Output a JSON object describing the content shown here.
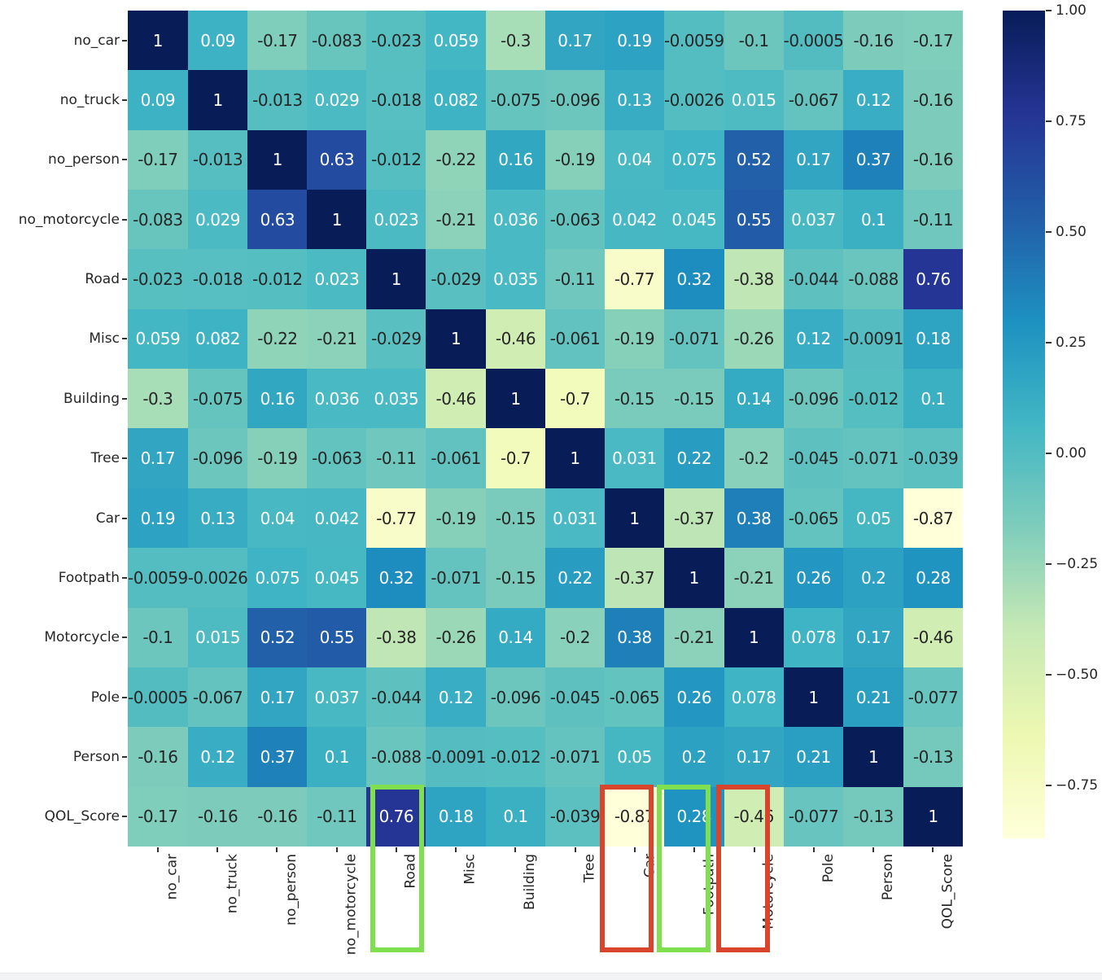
{
  "figure": {
    "background": "#ffffff",
    "colormap_name": "YlGnBu",
    "vmin": -0.87,
    "vmax": 1.0,
    "colormap_stops": [
      "#ffffd9",
      "#edf8b1",
      "#c7e9b4",
      "#7fcdbb",
      "#41b6c4",
      "#1d91c0",
      "#225ea8",
      "#253494",
      "#081d58"
    ],
    "annotation_dark_color": "#262626",
    "annotation_light_color": "#ffffff"
  },
  "chart_data": {
    "type": "heatmap",
    "title": "",
    "xlabel": "",
    "ylabel": "",
    "legend_position": "right-colorbar",
    "labels": [
      "no_car",
      "no_truck",
      "no_person",
      "no_motorcycle",
      "Road",
      "Misc",
      "Building",
      "Tree",
      "Car",
      "Footpath",
      "Motorcycle",
      "Pole",
      "Person",
      "QOL_Score"
    ],
    "matrix": [
      [
        "1",
        "0.09",
        "-0.17",
        "-0.083",
        "-0.023",
        "0.059",
        "-0.3",
        "0.17",
        "0.19",
        "-0.0059",
        "-0.1",
        "-0.0005",
        "-0.16",
        "-0.17"
      ],
      [
        "0.09",
        "1",
        "-0.013",
        "0.029",
        "-0.018",
        "0.082",
        "-0.075",
        "-0.096",
        "0.13",
        "-0.0026",
        "0.015",
        "-0.067",
        "0.12",
        "-0.16"
      ],
      [
        "-0.17",
        "-0.013",
        "1",
        "0.63",
        "-0.012",
        "-0.22",
        "0.16",
        "-0.19",
        "0.04",
        "0.075",
        "0.52",
        "0.17",
        "0.37",
        "-0.16"
      ],
      [
        "-0.083",
        "0.029",
        "0.63",
        "1",
        "0.023",
        "-0.21",
        "0.036",
        "-0.063",
        "0.042",
        "0.045",
        "0.55",
        "0.037",
        "0.1",
        "-0.11"
      ],
      [
        "-0.023",
        "-0.018",
        "-0.012",
        "0.023",
        "1",
        "-0.029",
        "0.035",
        "-0.11",
        "-0.77",
        "0.32",
        "-0.38",
        "-0.044",
        "-0.088",
        "0.76"
      ],
      [
        "0.059",
        "0.082",
        "-0.22",
        "-0.21",
        "-0.029",
        "1",
        "-0.46",
        "-0.061",
        "-0.19",
        "-0.071",
        "-0.26",
        "0.12",
        "-0.0091",
        "0.18"
      ],
      [
        "-0.3",
        "-0.075",
        "0.16",
        "0.036",
        "0.035",
        "-0.46",
        "1",
        "-0.7",
        "-0.15",
        "-0.15",
        "0.14",
        "-0.096",
        "-0.012",
        "0.1"
      ],
      [
        "0.17",
        "-0.096",
        "-0.19",
        "-0.063",
        "-0.11",
        "-0.061",
        "-0.7",
        "1",
        "0.031",
        "0.22",
        "-0.2",
        "-0.045",
        "-0.071",
        "-0.039"
      ],
      [
        "0.19",
        "0.13",
        "0.04",
        "0.042",
        "-0.77",
        "-0.19",
        "-0.15",
        "0.031",
        "1",
        "-0.37",
        "0.38",
        "-0.065",
        "0.05",
        "-0.87"
      ],
      [
        "-0.0059",
        "-0.0026",
        "0.075",
        "0.045",
        "0.32",
        "-0.071",
        "-0.15",
        "0.22",
        "-0.37",
        "1",
        "-0.21",
        "0.26",
        "0.2",
        "0.28"
      ],
      [
        "-0.1",
        "0.015",
        "0.52",
        "0.55",
        "-0.38",
        "-0.26",
        "0.14",
        "-0.2",
        "0.38",
        "-0.21",
        "1",
        "0.078",
        "0.17",
        "-0.46"
      ],
      [
        "-0.0005",
        "-0.067",
        "0.17",
        "0.037",
        "-0.044",
        "0.12",
        "-0.096",
        "-0.045",
        "-0.065",
        "0.26",
        "0.078",
        "1",
        "0.21",
        "-0.077"
      ],
      [
        "-0.16",
        "0.12",
        "0.37",
        "0.1",
        "-0.088",
        "-0.0091",
        "-0.012",
        "-0.071",
        "0.05",
        "0.2",
        "0.17",
        "0.21",
        "1",
        "-0.13"
      ],
      [
        "-0.17",
        "-0.16",
        "-0.16",
        "-0.11",
        "0.76",
        "0.18",
        "0.1",
        "-0.039",
        "-0.87",
        "0.28",
        "-0.46",
        "-0.077",
        "-0.13",
        "1"
      ]
    ],
    "colorbar": {
      "tick_labels": [
        "1.00",
        "0.75",
        "0.50",
        "0.25",
        "0.00",
        "−0.25",
        "−0.50",
        "−0.75"
      ],
      "tick_values": [
        1.0,
        0.75,
        0.5,
        0.25,
        0.0,
        -0.25,
        -0.5,
        -0.75
      ]
    },
    "highlights": [
      {
        "column": "Road",
        "color": "#7fdf4f",
        "style": "green-box"
      },
      {
        "column": "Car",
        "color": "#d9452c",
        "style": "red-box"
      },
      {
        "column": "Footpath",
        "color": "#7fdf4f",
        "style": "green-box"
      },
      {
        "column": "Motorcycle",
        "color": "#d9452c",
        "style": "red-box"
      }
    ]
  }
}
